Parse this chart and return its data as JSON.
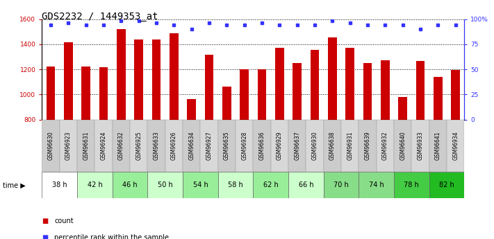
{
  "title": "GDS2232 / 1449353_at",
  "samples": [
    "GSM96630",
    "GSM96923",
    "GSM96631",
    "GSM96924",
    "GSM96632",
    "GSM96925",
    "GSM96633",
    "GSM96926",
    "GSM96634",
    "GSM96927",
    "GSM96635",
    "GSM96928",
    "GSM96636",
    "GSM96929",
    "GSM96637",
    "GSM96930",
    "GSM96638",
    "GSM96931",
    "GSM96639",
    "GSM96932",
    "GSM96640",
    "GSM96933",
    "GSM96641",
    "GSM96934"
  ],
  "counts": [
    1220,
    1415,
    1220,
    1215,
    1520,
    1435,
    1435,
    1490,
    965,
    1315,
    1060,
    1200,
    1200,
    1370,
    1250,
    1355,
    1455,
    1370,
    1250,
    1270,
    980,
    1265,
    1140,
    1195
  ],
  "percentile_ranks": [
    94,
    96,
    94,
    94,
    98,
    98,
    96,
    94,
    90,
    96,
    94,
    94,
    96,
    94,
    94,
    94,
    98,
    96,
    94,
    94,
    94,
    90,
    94,
    94
  ],
  "time_groups": [
    {
      "label": "38 h",
      "indices": [
        0,
        1
      ],
      "color": "#ffffff"
    },
    {
      "label": "42 h",
      "indices": [
        2,
        3
      ],
      "color": "#ccffcc"
    },
    {
      "label": "46 h",
      "indices": [
        4,
        5
      ],
      "color": "#99ee99"
    },
    {
      "label": "50 h",
      "indices": [
        6,
        7
      ],
      "color": "#ccffcc"
    },
    {
      "label": "54 h",
      "indices": [
        8,
        9
      ],
      "color": "#99ee99"
    },
    {
      "label": "58 h",
      "indices": [
        10,
        11
      ],
      "color": "#ccffcc"
    },
    {
      "label": "62 h",
      "indices": [
        12,
        13
      ],
      "color": "#99ee99"
    },
    {
      "label": "66 h",
      "indices": [
        14,
        15
      ],
      "color": "#ccffcc"
    },
    {
      "label": "70 h",
      "indices": [
        16,
        17
      ],
      "color": "#88dd88"
    },
    {
      "label": "74 h",
      "indices": [
        18,
        19
      ],
      "color": "#88dd88"
    },
    {
      "label": "78 h",
      "indices": [
        20,
        21
      ],
      "color": "#44cc44"
    },
    {
      "label": "82 h",
      "indices": [
        22,
        23
      ],
      "color": "#22bb22"
    }
  ],
  "bar_color": "#cc0000",
  "marker_color": "#3333ff",
  "ymin": 800,
  "ymax": 1600,
  "yticks_left": [
    800,
    1000,
    1200,
    1400,
    1600
  ],
  "yticks_right": [
    0,
    25,
    50,
    75,
    100
  ],
  "bg_color": "#ffffff",
  "sample_label_bg": "#d0d0d0",
  "title_fontsize": 10,
  "tick_fontsize": 6.5,
  "bar_width": 0.5
}
